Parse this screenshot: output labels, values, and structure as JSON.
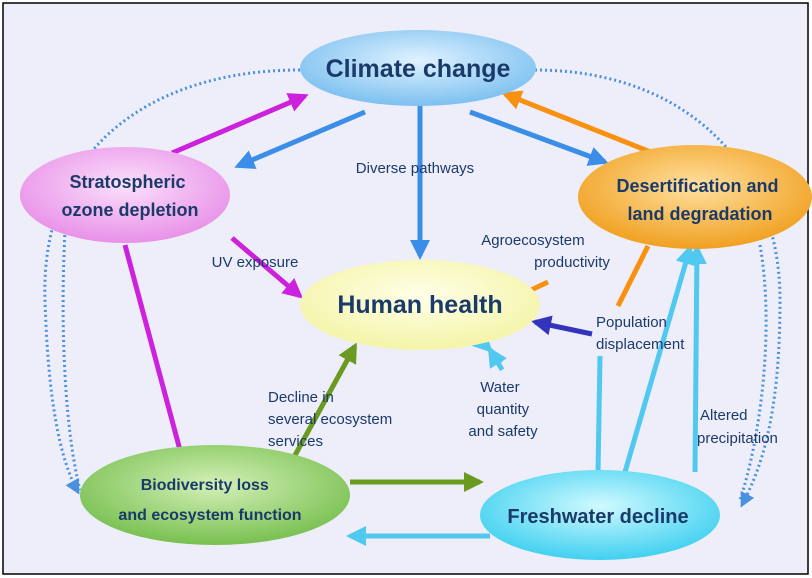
{
  "nodes": [
    {
      "lines": [
        "Climate change"
      ]
    },
    {
      "lines": [
        "Stratospheric",
        "ozone depletion"
      ]
    },
    {
      "lines": [
        "Desertification and",
        "land degradation"
      ]
    },
    {
      "lines": [
        "Human health"
      ]
    },
    {
      "lines": [
        "Biodiversity loss",
        "and ecosystem function"
      ]
    },
    {
      "lines": [
        "Freshwater decline"
      ]
    }
  ],
  "edge_labels": [
    {
      "lines": [
        "Diverse pathways"
      ]
    },
    {
      "lines": [
        "UV exposure"
      ]
    },
    {
      "lines": [
        "Agroecosystem",
        "productivity"
      ]
    },
    {
      "lines": [
        "Population",
        "displacement"
      ]
    },
    {
      "lines": [
        "Decline in",
        "several ecosystem",
        "services"
      ]
    },
    {
      "lines": [
        "Water",
        "quantity",
        "and safety"
      ]
    },
    {
      "lines": [
        "Altered",
        "precipitation"
      ]
    }
  ]
}
